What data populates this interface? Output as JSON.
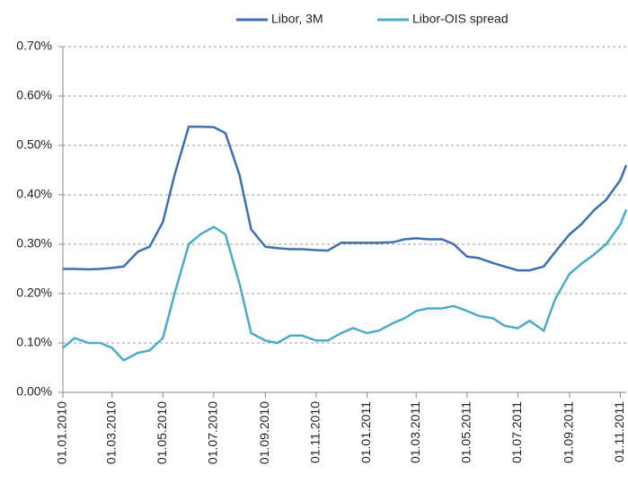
{
  "chart_data": {
    "type": "line",
    "x": [
      "01.01.2010",
      "15.01.2010",
      "01.02.2010",
      "15.02.2010",
      "01.03.2010",
      "15.03.2010",
      "01.04.2010",
      "15.04.2010",
      "01.05.2010",
      "15.05.2010",
      "01.06.2010",
      "15.06.2010",
      "01.07.2010",
      "15.07.2010",
      "01.08.2010",
      "15.08.2010",
      "01.09.2010",
      "15.09.2010",
      "01.10.2010",
      "15.10.2010",
      "01.11.2010",
      "15.11.2010",
      "01.12.2010",
      "15.12.2010",
      "01.01.2011",
      "15.01.2011",
      "01.02.2011",
      "15.02.2011",
      "01.03.2011",
      "15.03.2011",
      "01.04.2011",
      "15.04.2011",
      "01.05.2011",
      "15.05.2011",
      "01.06.2011",
      "15.06.2011",
      "01.07.2011",
      "15.07.2011",
      "01.08.2011",
      "15.08.2011",
      "01.09.2011",
      "15.09.2011",
      "01.10.2011",
      "15.10.2011",
      "01.11.2011",
      "08.11.2011"
    ],
    "series": [
      {
        "name": "Libor, 3M",
        "color": "#3f6fae",
        "values": [
          0.25,
          0.25,
          0.249,
          0.25,
          0.252,
          0.255,
          0.285,
          0.295,
          0.345,
          0.44,
          0.538,
          0.538,
          0.537,
          0.525,
          0.44,
          0.33,
          0.295,
          0.292,
          0.29,
          0.29,
          0.288,
          0.287,
          0.303,
          0.303,
          0.303,
          0.303,
          0.304,
          0.31,
          0.312,
          0.31,
          0.31,
          0.3,
          0.275,
          0.272,
          0.262,
          0.255,
          0.247,
          0.247,
          0.255,
          0.285,
          0.32,
          0.34,
          0.37,
          0.39,
          0.43,
          0.46
        ]
      },
      {
        "name": "Libor-OIS spread",
        "color": "#4bacc6",
        "values": [
          0.09,
          0.11,
          0.1,
          0.1,
          0.09,
          0.065,
          0.08,
          0.085,
          0.11,
          0.2,
          0.3,
          0.32,
          0.335,
          0.32,
          0.22,
          0.12,
          0.105,
          0.1,
          0.115,
          0.115,
          0.105,
          0.105,
          0.12,
          0.13,
          0.12,
          0.125,
          0.14,
          0.15,
          0.165,
          0.17,
          0.17,
          0.175,
          0.165,
          0.155,
          0.15,
          0.135,
          0.13,
          0.145,
          0.125,
          0.19,
          0.24,
          0.26,
          0.28,
          0.3,
          0.34,
          0.37
        ]
      }
    ],
    "xlim": [
      "01.01.2010",
      "08.11.2011"
    ],
    "xticks": [
      "01.01.2010",
      "01.03.2010",
      "01.05.2010",
      "01.07.2010",
      "01.09.2010",
      "01.11.2010",
      "01.01.2011",
      "01.03.2011",
      "01.05.2011",
      "01.07.2011",
      "01.09.2011",
      "01.11.2011"
    ],
    "ylim": [
      0,
      0.7
    ],
    "yticks": [
      {
        "value": 0,
        "label": "0.00%"
      },
      {
        "value": 0.1,
        "label": "0.10%"
      },
      {
        "value": 0.2,
        "label": "0.20%"
      },
      {
        "value": 0.3,
        "label": "0.30%"
      },
      {
        "value": 0.4,
        "label": "0.40%"
      },
      {
        "value": 0.5,
        "label": "0.50%"
      },
      {
        "value": 0.6,
        "label": "0.60%"
      },
      {
        "value": 0.7,
        "label": "0.70%"
      }
    ],
    "grid": true,
    "legend": "top"
  }
}
